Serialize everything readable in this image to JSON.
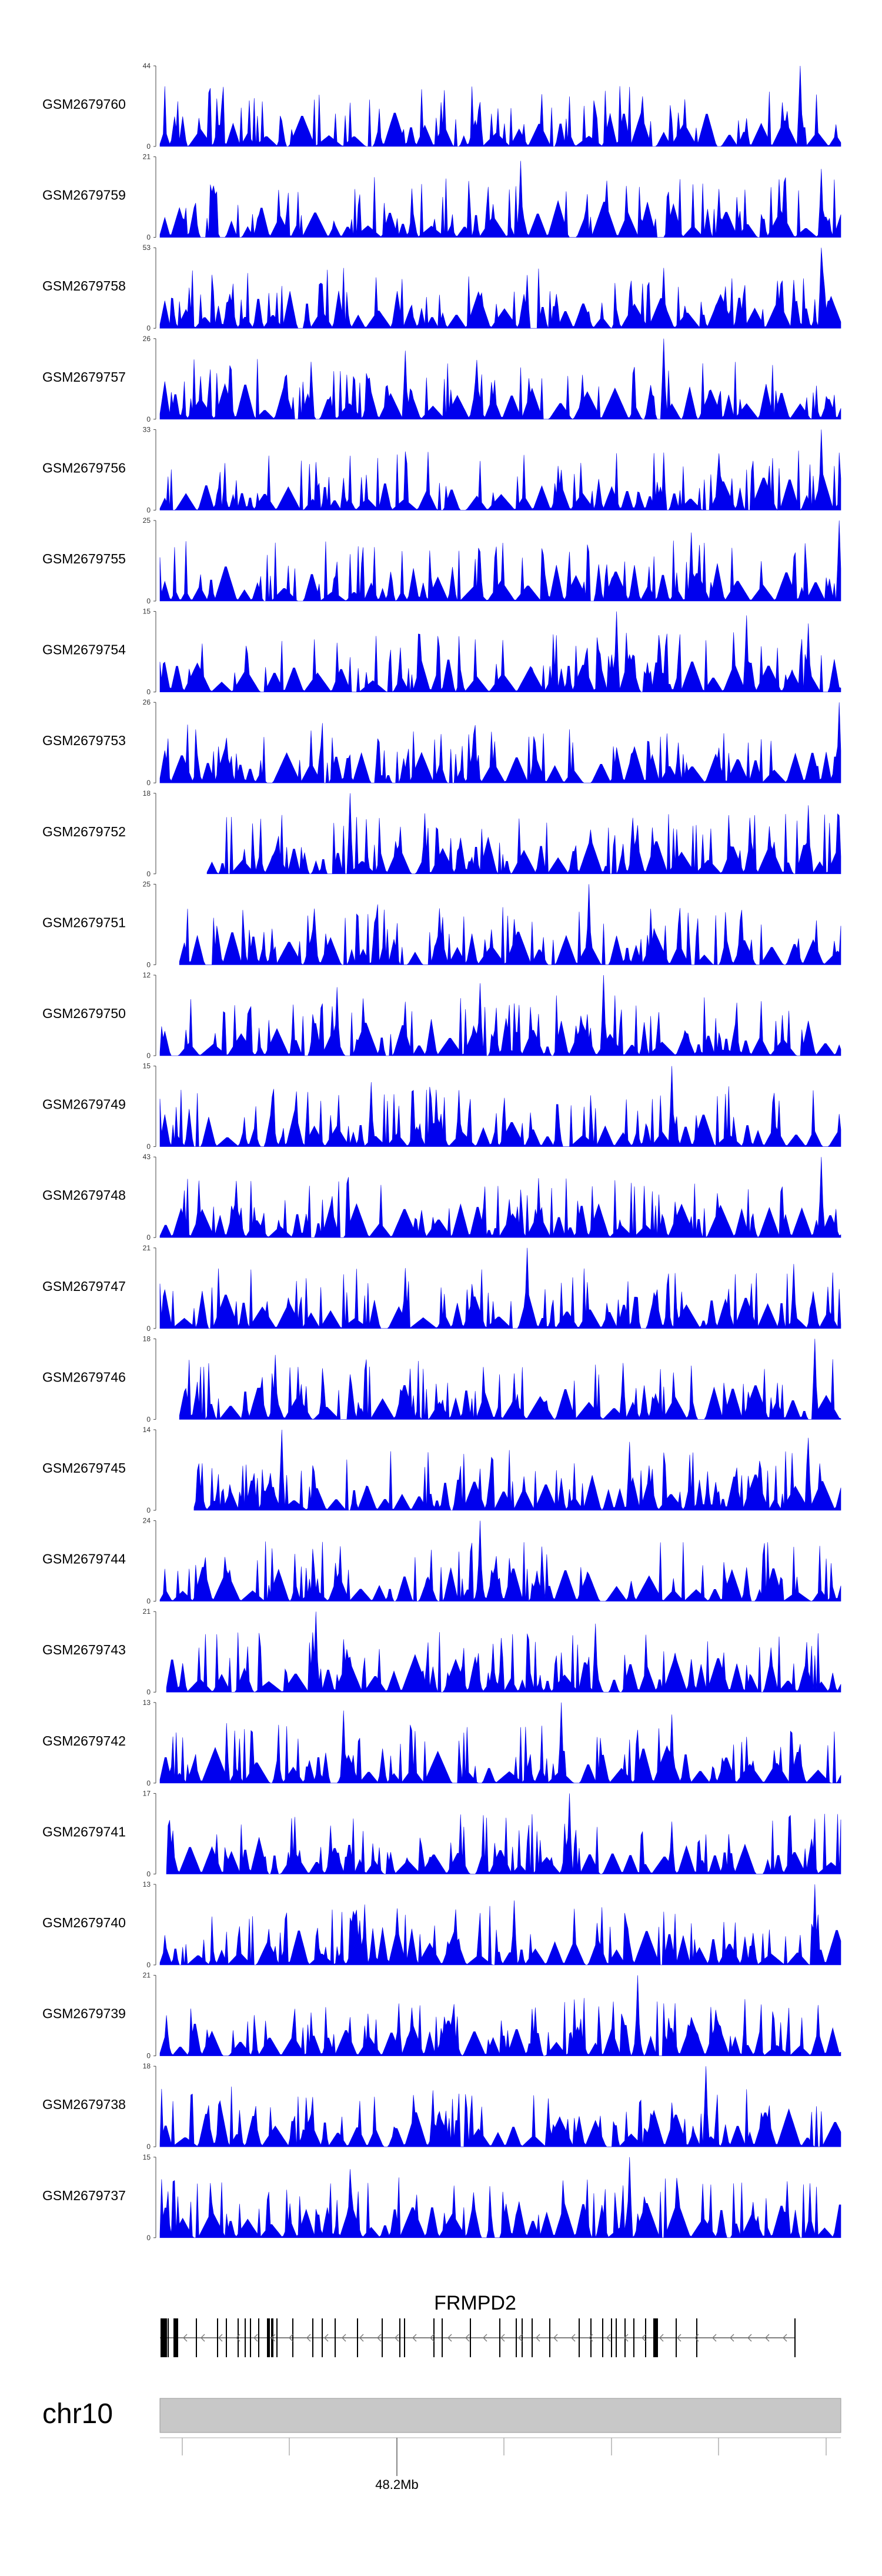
{
  "chart_data": {
    "type": "area",
    "description_kind": "genome browser coverage tracks",
    "track_color": "#0000EE",
    "tracks": [
      {
        "name": "GSM2679760",
        "ymax": "44",
        "ymin": "0",
        "max": 44,
        "seed": 11,
        "start": 0.0,
        "peaks": [
          [
            0.94,
            1.0,
            0.1
          ],
          [
            0.86,
            0.35,
            0.08
          ],
          [
            0.47,
            0.55,
            0.12
          ]
        ]
      },
      {
        "name": "GSM2679759",
        "ymax": "21",
        "ymin": "0",
        "max": 21,
        "seed": 23,
        "start": 0.0,
        "peaks": [
          [
            0.97,
            0.85,
            0.1
          ],
          [
            0.53,
            0.95,
            0.1
          ],
          [
            0.82,
            0.6,
            0.08
          ]
        ]
      },
      {
        "name": "GSM2679758",
        "ymax": "53",
        "ymin": "0",
        "max": 53,
        "seed": 37,
        "start": 0.0,
        "peaks": [
          [
            0.97,
            1.0,
            0.1
          ],
          [
            0.74,
            0.75,
            0.1
          ],
          [
            0.93,
            0.6,
            0.08
          ]
        ]
      },
      {
        "name": "GSM2679757",
        "ymax": "26",
        "ymin": "0",
        "max": 26,
        "seed": 41,
        "start": 0.0,
        "peaks": [
          [
            0.74,
            1.0,
            0.1
          ],
          [
            0.36,
            0.85,
            0.1
          ],
          [
            0.62,
            0.55,
            0.08
          ]
        ]
      },
      {
        "name": "GSM2679756",
        "ymax": "33",
        "ymin": "0",
        "max": 33,
        "seed": 53,
        "start": 0.0,
        "peaks": [
          [
            0.97,
            1.0,
            0.1
          ],
          [
            0.27,
            0.4,
            0.1
          ],
          [
            0.73,
            0.35,
            0.08
          ]
        ]
      },
      {
        "name": "GSM2679755",
        "ymax": "25",
        "ymin": "0",
        "max": 25,
        "seed": 67,
        "start": 0.0,
        "peaks": [
          [
            0.997,
            1.0,
            0.1
          ],
          [
            0.78,
            0.85,
            0.1
          ],
          [
            0.47,
            0.6,
            0.08
          ]
        ]
      },
      {
        "name": "GSM2679754",
        "ymax": "15",
        "ymin": "0",
        "max": 15,
        "seed": 71,
        "start": 0.0,
        "peaks": [
          [
            0.67,
            1.0,
            0.1
          ],
          [
            0.86,
            0.95,
            0.1
          ],
          [
            0.95,
            0.85,
            0.08
          ]
        ]
      },
      {
        "name": "GSM2679753",
        "ymax": "26",
        "ymin": "0",
        "max": 26,
        "seed": 83,
        "start": 0.0,
        "peaks": [
          [
            0.997,
            1.0,
            0.1
          ],
          [
            0.32,
            0.55,
            0.1
          ],
          [
            0.76,
            0.5,
            0.08
          ]
        ]
      },
      {
        "name": "GSM2679752",
        "ymax": "18",
        "ymin": "0",
        "max": 18,
        "seed": 97,
        "start": 0.07,
        "peaks": [
          [
            0.28,
            1.0,
            0.1
          ],
          [
            0.95,
            0.85,
            0.1
          ],
          [
            0.39,
            0.75,
            0.08
          ]
        ]
      },
      {
        "name": "GSM2679751",
        "ymax": "25",
        "ymin": "0",
        "max": 25,
        "seed": 101,
        "start": 0.03,
        "peaks": [
          [
            0.63,
            1.0,
            0.1
          ],
          [
            0.41,
            0.7,
            0.1
          ],
          [
            0.85,
            0.55,
            0.08
          ]
        ]
      },
      {
        "name": "GSM2679750",
        "ymax": "12",
        "ymin": "0",
        "max": 12,
        "seed": 113,
        "start": 0.0,
        "peaks": [
          [
            0.65,
            1.0,
            0.1
          ],
          [
            0.26,
            0.85,
            0.1
          ],
          [
            0.47,
            0.9,
            0.08
          ]
        ]
      },
      {
        "name": "GSM2679749",
        "ymax": "15",
        "ymin": "0",
        "max": 15,
        "seed": 127,
        "start": 0.0,
        "peaks": [
          [
            0.75,
            1.0,
            0.1
          ],
          [
            0.31,
            0.8,
            0.1
          ],
          [
            0.44,
            0.7,
            0.08
          ]
        ]
      },
      {
        "name": "GSM2679748",
        "ymax": "43",
        "ymin": "0",
        "max": 43,
        "seed": 131,
        "start": 0.0,
        "peaks": [
          [
            0.97,
            1.0,
            0.1
          ],
          [
            0.55,
            0.35,
            0.1
          ],
          [
            0.29,
            0.25,
            0.08
          ]
        ]
      },
      {
        "name": "GSM2679747",
        "ymax": "21",
        "ymin": "0",
        "max": 21,
        "seed": 139,
        "start": 0.0,
        "peaks": [
          [
            0.54,
            1.0,
            0.1
          ],
          [
            0.36,
            0.75,
            0.1
          ],
          [
            0.93,
            0.8,
            0.08
          ]
        ]
      },
      {
        "name": "GSM2679746",
        "ymax": "18",
        "ymin": "0",
        "max": 18,
        "seed": 149,
        "start": 0.03,
        "peaks": [
          [
            0.96,
            1.0,
            0.1
          ],
          [
            0.17,
            0.8,
            0.1
          ],
          [
            0.68,
            0.7,
            0.08
          ]
        ]
      },
      {
        "name": "GSM2679745",
        "ymax": "14",
        "ymin": "0",
        "max": 14,
        "seed": 157,
        "start": 0.05,
        "peaks": [
          [
            0.18,
            1.0,
            0.1
          ],
          [
            0.69,
            0.85,
            0.1
          ],
          [
            0.95,
            0.9,
            0.08
          ]
        ]
      },
      {
        "name": "GSM2679744",
        "ymax": "24",
        "ymin": "0",
        "max": 24,
        "seed": 163,
        "start": 0.0,
        "peaks": [
          [
            0.47,
            1.0,
            0.1
          ],
          [
            0.83,
            0.3,
            0.1
          ],
          [
            0.63,
            0.3,
            0.08
          ]
        ]
      },
      {
        "name": "GSM2679743",
        "ymax": "21",
        "ymin": "0",
        "max": 21,
        "seed": 173,
        "start": 0.01,
        "peaks": [
          [
            0.23,
            1.0,
            0.1
          ],
          [
            0.64,
            0.85,
            0.1
          ],
          [
            0.49,
            0.6,
            0.08
          ]
        ]
      },
      {
        "name": "GSM2679742",
        "ymax": "13",
        "ymin": "0",
        "max": 13,
        "seed": 181,
        "start": 0.0,
        "peaks": [
          [
            0.59,
            1.0,
            0.1
          ],
          [
            0.27,
            0.9,
            0.1
          ],
          [
            0.75,
            0.85,
            0.08
          ]
        ]
      },
      {
        "name": "GSM2679741",
        "ymax": "17",
        "ymin": "0",
        "max": 17,
        "seed": 191,
        "start": 0.01,
        "peaks": [
          [
            0.6,
            1.0,
            0.1
          ],
          [
            0.25,
            0.6,
            0.1
          ],
          [
            0.75,
            0.65,
            0.08
          ]
        ]
      },
      {
        "name": "GSM2679740",
        "ymax": "13",
        "ymin": "0",
        "max": 13,
        "seed": 199,
        "start": 0.0,
        "peaks": [
          [
            0.96,
            1.0,
            0.1
          ],
          [
            0.52,
            0.8,
            0.1
          ],
          [
            0.3,
            0.75,
            0.08
          ]
        ]
      },
      {
        "name": "GSM2679739",
        "ymax": "21",
        "ymin": "0",
        "max": 21,
        "seed": 211,
        "start": 0.0,
        "peaks": [
          [
            0.7,
            1.0,
            0.1
          ],
          [
            0.35,
            0.65,
            0.1
          ],
          [
            0.55,
            0.6,
            0.08
          ]
        ]
      },
      {
        "name": "GSM2679738",
        "ymax": "18",
        "ymin": "0",
        "max": 18,
        "seed": 223,
        "start": 0.0,
        "peaks": [
          [
            0.8,
            1.0,
            0.1
          ],
          [
            0.4,
            0.7,
            0.1
          ],
          [
            0.57,
            0.6,
            0.08
          ]
        ]
      },
      {
        "name": "GSM2679737",
        "ymax": "15",
        "ymin": "0",
        "max": 15,
        "seed": 227,
        "start": 0.0,
        "peaks": [
          [
            0.69,
            1.0,
            0.1
          ],
          [
            0.28,
            0.85,
            0.1
          ],
          [
            0.92,
            0.7,
            0.08
          ]
        ]
      }
    ],
    "gene": {
      "name": "FRMPD2",
      "strand": "-"
    },
    "chromosome": {
      "name": "chr10",
      "tick_label": "48.2Mb"
    }
  }
}
